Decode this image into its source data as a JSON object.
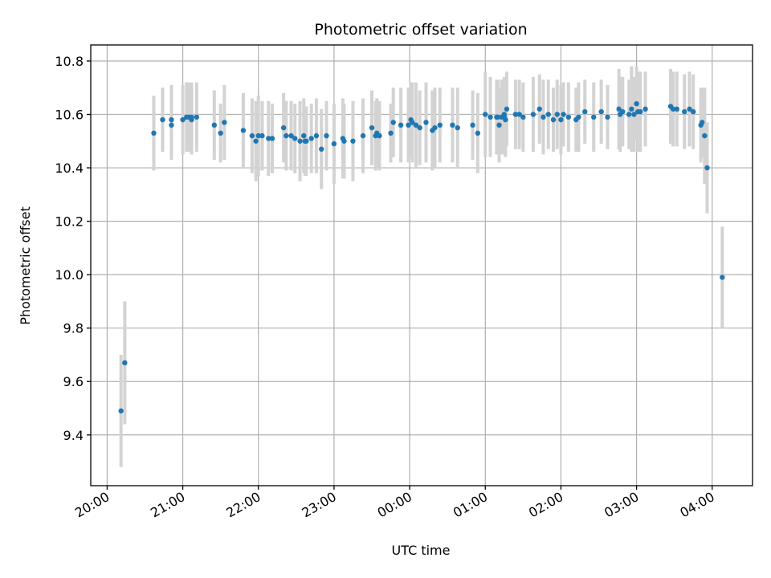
{
  "chart_data": {
    "type": "scatter",
    "title": "Photometric offset variation",
    "xlabel": "UTC time",
    "ylabel": "Photometric offset",
    "xlim": [
      "19:47",
      "04:32"
    ],
    "ylim": [
      9.21,
      10.86
    ],
    "x_ticks": [
      "20:00",
      "21:00",
      "22:00",
      "23:00",
      "00:00",
      "01:00",
      "02:00",
      "03:00",
      "04:00"
    ],
    "y_ticks": [
      9.4,
      9.6,
      9.8,
      10.0,
      10.2,
      10.4,
      10.6,
      10.8
    ],
    "grid": true,
    "marker_color": "#1f77b4",
    "errorbar_color": "#d3d3d3",
    "series": [
      {
        "time": [
          "20:11",
          "20:14",
          "20:37",
          "20:44",
          "20:51",
          "20:51",
          "21:00",
          "21:03",
          "21:05",
          "21:07",
          "21:07",
          "21:11",
          "21:25",
          "21:30",
          "21:33",
          "21:48",
          "21:55",
          "21:58",
          "22:00",
          "22:03",
          "22:08",
          "22:11",
          "22:20",
          "22:22",
          "22:26",
          "22:29",
          "22:33",
          "22:36",
          "22:37",
          "22:38",
          "22:42",
          "22:46",
          "22:50",
          "22:54",
          "23:00",
          "23:07",
          "23:08",
          "23:15",
          "23:23",
          "23:30",
          "23:33",
          "23:34",
          "23:36",
          "23:45",
          "23:47",
          "23:53",
          "23:59",
          "00:01",
          "00:02",
          "00:05",
          "00:08",
          "00:13",
          "00:18",
          "00:20",
          "00:24",
          "00:34",
          "00:38",
          "00:50",
          "00:54",
          "01:00",
          "01:04",
          "01:09",
          "01:10",
          "01:11",
          "01:13",
          "01:15",
          "01:15",
          "01:16",
          "01:17",
          "01:24",
          "01:27",
          "01:30",
          "01:38",
          "01:43",
          "01:46",
          "01:50",
          "01:54",
          "01:57",
          "02:00",
          "02:02",
          "02:06",
          "02:12",
          "02:14",
          "02:19",
          "02:26",
          "02:32",
          "02:37",
          "02:46",
          "02:47",
          "02:49",
          "02:54",
          "02:56",
          "02:58",
          "03:00",
          "03:01",
          "03:03",
          "03:07",
          "03:27",
          "03:29",
          "03:32",
          "03:38",
          "03:42",
          "03:45",
          "03:51",
          "03:52",
          "03:54",
          "03:56",
          "04:08"
        ],
        "offset": [
          9.49,
          9.67,
          10.53,
          10.58,
          10.56,
          10.58,
          10.58,
          10.59,
          10.59,
          10.58,
          10.59,
          10.59,
          10.56,
          10.53,
          10.57,
          10.54,
          10.52,
          10.5,
          10.52,
          10.52,
          10.51,
          10.51,
          10.55,
          10.52,
          10.52,
          10.51,
          10.5,
          10.52,
          10.5,
          10.5,
          10.51,
          10.52,
          10.47,
          10.52,
          10.49,
          10.51,
          10.5,
          10.5,
          10.52,
          10.55,
          10.52,
          10.53,
          10.52,
          10.53,
          10.57,
          10.56,
          10.56,
          10.58,
          10.57,
          10.56,
          10.55,
          10.57,
          10.54,
          10.55,
          10.56,
          10.56,
          10.55,
          10.56,
          10.53,
          10.6,
          10.59,
          10.59,
          10.59,
          10.56,
          10.59,
          10.59,
          10.6,
          10.58,
          10.62,
          10.6,
          10.6,
          10.59,
          10.6,
          10.62,
          10.59,
          10.6,
          10.58,
          10.6,
          10.58,
          10.6,
          10.59,
          10.58,
          10.59,
          10.61,
          10.59,
          10.61,
          10.59,
          10.62,
          10.6,
          10.61,
          10.6,
          10.62,
          10.6,
          10.64,
          10.61,
          10.61,
          10.62,
          10.63,
          10.62,
          10.62,
          10.61,
          10.62,
          10.61,
          10.56,
          10.57,
          10.52,
          10.4,
          9.99
        ],
        "error": [
          0.21,
          0.23,
          0.14,
          0.12,
          0.13,
          0.13,
          0.13,
          0.13,
          0.13,
          0.13,
          0.13,
          0.13,
          0.13,
          0.11,
          0.14,
          0.14,
          0.14,
          0.15,
          0.15,
          0.13,
          0.14,
          0.13,
          0.13,
          0.13,
          0.13,
          0.13,
          0.15,
          0.14,
          0.13,
          0.13,
          0.13,
          0.14,
          0.15,
          0.13,
          0.15,
          0.15,
          0.14,
          0.15,
          0.14,
          0.14,
          0.13,
          0.13,
          0.13,
          0.11,
          0.13,
          0.14,
          0.14,
          0.14,
          0.15,
          0.16,
          0.14,
          0.15,
          0.15,
          0.15,
          0.14,
          0.14,
          0.15,
          0.13,
          0.15,
          0.16,
          0.15,
          0.14,
          0.14,
          0.14,
          0.14,
          0.14,
          0.14,
          0.14,
          0.14,
          0.13,
          0.13,
          0.13,
          0.14,
          0.13,
          0.14,
          0.13,
          0.12,
          0.13,
          0.13,
          0.12,
          0.13,
          0.12,
          0.13,
          0.12,
          0.13,
          0.12,
          0.12,
          0.15,
          0.14,
          0.13,
          0.13,
          0.16,
          0.14,
          0.14,
          0.15,
          0.15,
          0.14,
          0.14,
          0.14,
          0.14,
          0.14,
          0.14,
          0.14,
          0.14,
          0.13,
          0.18,
          0.17,
          0.19
        ]
      }
    ]
  }
}
